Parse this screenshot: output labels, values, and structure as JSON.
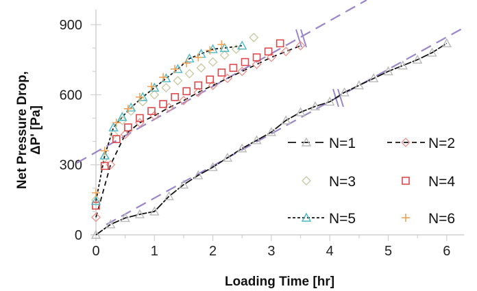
{
  "chart_data": {
    "type": "scatter",
    "title": "",
    "xlabel": "Loading Time [hr]",
    "ylabel_lines": [
      "Net Pressure Drop,",
      "ΔP' [Pa]"
    ],
    "xlim": [
      0,
      6.3
    ],
    "ylim": [
      0,
      960
    ],
    "x_ticks": [
      0,
      1,
      2,
      3,
      4,
      5,
      6
    ],
    "y_ticks": [
      0,
      300,
      600,
      900
    ],
    "x_tick_labels": [
      "0",
      "1",
      "2",
      "3",
      "4",
      "5",
      "6"
    ],
    "y_tick_labels": [
      "0",
      "300",
      "600",
      "900"
    ],
    "grid": false,
    "legend_position": "lower right (inside plot)",
    "series": [
      {
        "name": "N=1",
        "marker": "triangle",
        "color": "#b9b9b9",
        "line": "solid-dash",
        "line_color": "#111111",
        "x": [
          0,
          0.25,
          0.5,
          0.75,
          1.0,
          1.25,
          1.5,
          1.75,
          2.0,
          2.25,
          2.5,
          2.75,
          3.0,
          3.25,
          3.5,
          3.75,
          4.0,
          4.25,
          4.5,
          4.75,
          5.0,
          5.25,
          5.5,
          5.75,
          6.0
        ],
        "y": [
          0,
          45,
          72,
          88,
          100,
          165,
          215,
          255,
          290,
          330,
          370,
          405,
          440,
          490,
          525,
          550,
          570,
          610,
          640,
          670,
          700,
          725,
          750,
          780,
          820
        ]
      },
      {
        "name": "N=2",
        "marker": "diamond",
        "color": "#e8918a",
        "line": "dashed",
        "line_color": "#111111",
        "x": [
          0,
          0.25,
          0.5,
          0.75,
          1.0,
          1.25,
          1.5,
          1.75,
          2.0,
          2.25,
          2.5,
          2.75,
          3.0,
          3.25,
          3.5
        ],
        "y": [
          75,
          300,
          430,
          480,
          510,
          545,
          575,
          610,
          640,
          670,
          700,
          730,
          760,
          785,
          810
        ]
      },
      {
        "name": "N=3",
        "marker": "diamond",
        "color": "#c6c89e",
        "line": "none",
        "x": [
          0,
          0.15,
          0.3,
          0.45,
          0.6,
          0.8,
          1.0,
          1.2,
          1.4,
          1.6,
          1.8,
          2.0,
          2.2,
          2.4,
          2.7
        ],
        "y": [
          150,
          330,
          430,
          490,
          530,
          570,
          600,
          630,
          660,
          690,
          715,
          740,
          770,
          795,
          845
        ]
      },
      {
        "name": "N=4",
        "marker": "square",
        "color": "#e0474a",
        "line": "none",
        "x": [
          0,
          0.15,
          0.35,
          0.55,
          0.75,
          0.95,
          1.15,
          1.35,
          1.55,
          1.75,
          1.95,
          2.15,
          2.35,
          2.55,
          2.75,
          2.95,
          3.15
        ],
        "y": [
          125,
          295,
          410,
          460,
          500,
          530,
          560,
          590,
          615,
          640,
          665,
          695,
          715,
          740,
          760,
          785,
          820
        ]
      },
      {
        "name": "N=5",
        "marker": "triangle",
        "color": "#4ab8c4",
        "line": "dotted-dash",
        "line_color": "#111111",
        "x": [
          0,
          0.15,
          0.3,
          0.45,
          0.6,
          0.8,
          1.0,
          1.2,
          1.4,
          1.6,
          1.8,
          2.0,
          2.2,
          2.5
        ],
        "y": [
          145,
          340,
          460,
          505,
          545,
          590,
          630,
          670,
          710,
          755,
          775,
          795,
          800,
          810
        ]
      },
      {
        "name": "N=6",
        "marker": "plus",
        "color": "#f2a154",
        "line": "none",
        "x": [
          0,
          0.15,
          0.35,
          0.55,
          0.75,
          0.95,
          1.15,
          1.35,
          1.55,
          1.75,
          1.95,
          2.15
        ],
        "y": [
          180,
          360,
          480,
          540,
          590,
          635,
          675,
          710,
          735,
          760,
          790,
          815
        ]
      }
    ],
    "annotations": [
      {
        "type": "dashed-trend-line",
        "color": "#9b85c8",
        "note": "upper fit line across N=2..N=6 region with axis-break mark near t=3.5"
      },
      {
        "type": "dashed-trend-line",
        "color": "#9b85c8",
        "note": "lower fit line along N=1 with axis-break mark near t=4.0"
      }
    ]
  },
  "colors": {
    "axis": "#cfcfcf",
    "trend": "#9b85c8",
    "text": "#111111"
  }
}
